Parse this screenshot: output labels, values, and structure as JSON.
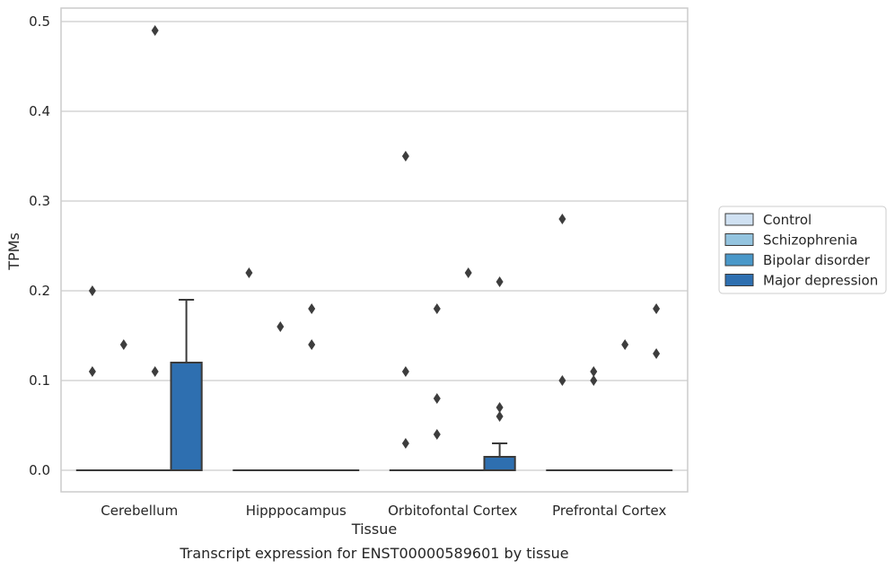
{
  "chart_data": {
    "type": "box",
    "title": "",
    "caption": "Transcript expression for ENST00000589601 by tissue",
    "xlabel": "Tissue",
    "ylabel": "TPMs",
    "ylim": [
      -0.024,
      0.515
    ],
    "yticks": [
      0.0,
      0.1,
      0.2,
      0.3,
      0.4,
      0.5
    ],
    "ytick_labels": [
      "0.0",
      "0.1",
      "0.2",
      "0.3",
      "0.4",
      "0.5"
    ],
    "grid": "y",
    "legend_position": "right",
    "categories": [
      "Cerebellum",
      "Hipppocampus",
      "Orbitofontal Cortex",
      "Prefrontal Cortex"
    ],
    "series": [
      {
        "name": "Control",
        "color": "#d0e1f2",
        "boxes": [
          {
            "q1": 0,
            "median": 0,
            "q3": 0,
            "whisker_low": 0,
            "whisker_high": 0,
            "outliers": [
              0.2,
              0.11
            ]
          },
          {
            "q1": 0,
            "median": 0,
            "q3": 0,
            "whisker_low": 0,
            "whisker_high": 0,
            "outliers": [
              0.22
            ]
          },
          {
            "q1": 0,
            "median": 0,
            "q3": 0,
            "whisker_low": 0,
            "whisker_high": 0,
            "outliers": [
              0.35,
              0.11,
              0.03
            ]
          },
          {
            "q1": 0,
            "median": 0,
            "q3": 0,
            "whisker_low": 0,
            "whisker_high": 0,
            "outliers": [
              0.28,
              0.1
            ]
          }
        ]
      },
      {
        "name": "Schizophrenia",
        "color": "#94c4df",
        "boxes": [
          {
            "q1": 0,
            "median": 0,
            "q3": 0,
            "whisker_low": 0,
            "whisker_high": 0,
            "outliers": [
              0.14
            ]
          },
          {
            "q1": 0,
            "median": 0,
            "q3": 0,
            "whisker_low": 0,
            "whisker_high": 0,
            "outliers": [
              0.16
            ]
          },
          {
            "q1": 0,
            "median": 0,
            "q3": 0,
            "whisker_low": 0,
            "whisker_high": 0,
            "outliers": [
              0.18,
              0.08,
              0.04
            ]
          },
          {
            "q1": 0,
            "median": 0,
            "q3": 0,
            "whisker_low": 0,
            "whisker_high": 0,
            "outliers": [
              0.11,
              0.1
            ]
          }
        ]
      },
      {
        "name": "Bipolar disorder",
        "color": "#4a98c9",
        "boxes": [
          {
            "q1": 0,
            "median": 0,
            "q3": 0,
            "whisker_low": 0,
            "whisker_high": 0,
            "outliers": [
              0.49,
              0.11
            ]
          },
          {
            "q1": 0,
            "median": 0,
            "q3": 0,
            "whisker_low": 0,
            "whisker_high": 0,
            "outliers": [
              0.18,
              0.14
            ]
          },
          {
            "q1": 0,
            "median": 0,
            "q3": 0,
            "whisker_low": 0,
            "whisker_high": 0,
            "outliers": [
              0.22
            ]
          },
          {
            "q1": 0,
            "median": 0,
            "q3": 0,
            "whisker_low": 0,
            "whisker_high": 0,
            "outliers": [
              0.14
            ]
          }
        ]
      },
      {
        "name": "Major depression",
        "color": "#2e6fb0",
        "boxes": [
          {
            "q1": 0,
            "median": 0,
            "q3": 0.12,
            "whisker_low": 0,
            "whisker_high": 0.19,
            "outliers": []
          },
          {
            "q1": 0,
            "median": 0,
            "q3": 0,
            "whisker_low": 0,
            "whisker_high": 0,
            "outliers": []
          },
          {
            "q1": 0,
            "median": 0,
            "q3": 0.015,
            "whisker_low": 0,
            "whisker_high": 0.03,
            "outliers": [
              0.21,
              0.07,
              0.06
            ]
          },
          {
            "q1": 0,
            "median": 0,
            "q3": 0,
            "whisker_low": 0,
            "whisker_high": 0,
            "outliers": [
              0.18,
              0.13
            ]
          }
        ]
      }
    ]
  }
}
